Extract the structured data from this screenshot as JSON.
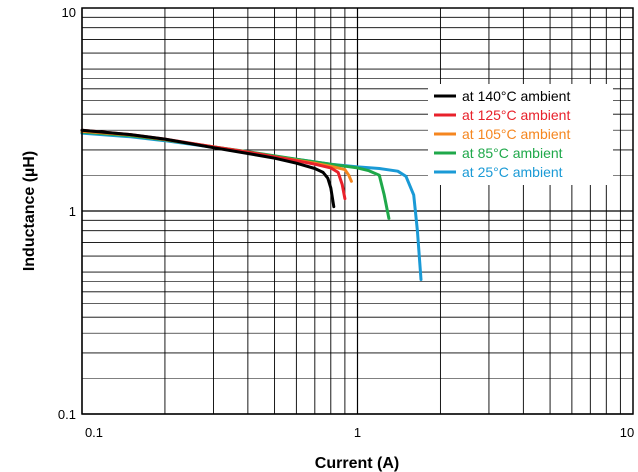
{
  "chart_data": {
    "type": "line",
    "xlabel": "Current (A)",
    "ylabel": "Inductance (µH)",
    "xscale": "log",
    "yscale": "log",
    "xlim": [
      0.1,
      10
    ],
    "ylim": [
      0.1,
      10
    ],
    "grid": true,
    "legend_position": "top-right",
    "x_ticks": [
      {
        "value": 0.1,
        "label": "0.1"
      },
      {
        "value": 1,
        "label": "1"
      },
      {
        "value": 10,
        "label": "10"
      }
    ],
    "y_ticks": [
      {
        "value": 0.1,
        "label": "0.1"
      },
      {
        "value": 1,
        "label": "1"
      },
      {
        "value": 10,
        "label": "10"
      }
    ],
    "series": [
      {
        "name": "at 25°C ambient",
        "color": "#1a9ad6",
        "x": [
          0.1,
          0.15,
          0.2,
          0.3,
          0.4,
          0.5,
          0.6,
          0.8,
          1.0,
          1.2,
          1.4,
          1.5,
          1.6,
          1.65,
          1.7
        ],
        "y": [
          2.42,
          2.32,
          2.22,
          2.06,
          1.95,
          1.86,
          1.8,
          1.7,
          1.65,
          1.62,
          1.57,
          1.48,
          1.2,
          0.8,
          0.46
        ]
      },
      {
        "name": "at 85°C ambient",
        "color": "#1fa84a",
        "x": [
          0.1,
          0.15,
          0.2,
          0.3,
          0.4,
          0.5,
          0.6,
          0.8,
          1.0,
          1.1,
          1.2,
          1.25,
          1.3
        ],
        "y": [
          2.45,
          2.35,
          2.24,
          2.07,
          1.96,
          1.87,
          1.8,
          1.7,
          1.63,
          1.58,
          1.5,
          1.2,
          0.92
        ]
      },
      {
        "name": "at 105°C ambient",
        "color": "#f5861f",
        "x": [
          0.1,
          0.15,
          0.2,
          0.3,
          0.4,
          0.5,
          0.6,
          0.7,
          0.8,
          0.9,
          0.93,
          0.95
        ],
        "y": [
          2.47,
          2.37,
          2.25,
          2.07,
          1.95,
          1.85,
          1.78,
          1.72,
          1.66,
          1.6,
          1.5,
          1.4
        ]
      },
      {
        "name": "at 125°C ambient",
        "color": "#e8212b",
        "x": [
          0.1,
          0.15,
          0.2,
          0.3,
          0.4,
          0.5,
          0.6,
          0.7,
          0.8,
          0.85,
          0.88,
          0.9
        ],
        "y": [
          2.5,
          2.38,
          2.26,
          2.07,
          1.95,
          1.85,
          1.77,
          1.7,
          1.63,
          1.55,
          1.35,
          1.15
        ]
      },
      {
        "name": "at 140°C ambient",
        "color": "#000000",
        "x": [
          0.1,
          0.15,
          0.2,
          0.3,
          0.4,
          0.5,
          0.6,
          0.7,
          0.75,
          0.78,
          0.8,
          0.82
        ],
        "y": [
          2.5,
          2.38,
          2.26,
          2.05,
          1.92,
          1.82,
          1.72,
          1.62,
          1.55,
          1.45,
          1.3,
          1.05
        ]
      }
    ],
    "legend_order": [
      "at 140°C ambient",
      "at 125°C ambient",
      "at 105°C ambient",
      "at 85°C ambient",
      "at 25°C ambient"
    ]
  }
}
